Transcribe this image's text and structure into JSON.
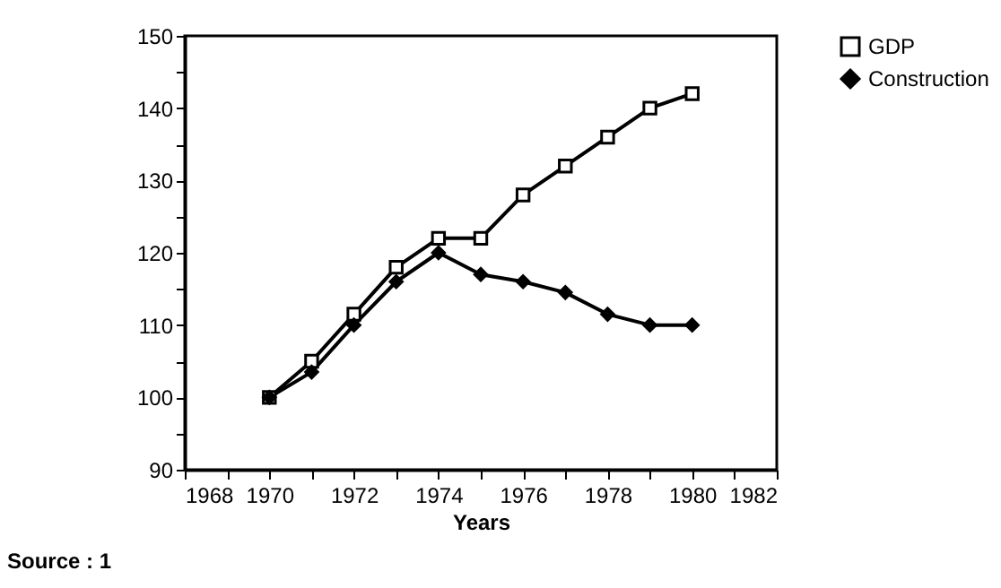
{
  "chart_data": {
    "type": "line",
    "xlabel": "Years",
    "x": [
      1970,
      1971,
      1972,
      1973,
      1974,
      1975,
      1976,
      1977,
      1978,
      1979,
      1980
    ],
    "series": [
      {
        "name": "GDP",
        "color": "#000000",
        "marker": "square",
        "values": [
          100,
          105,
          111.5,
          118,
          122,
          122,
          128,
          132,
          136,
          140,
          142
        ]
      },
      {
        "name": "Construction",
        "color": "#000000",
        "marker": "diamond",
        "values": [
          100,
          103.5,
          110,
          116,
          120,
          117,
          116,
          114.5,
          111.5,
          110,
          110
        ]
      }
    ],
    "xlim": [
      1968,
      1982
    ],
    "xticks": [
      1968,
      {
        "value": 1969,
        "label": null
      },
      1970,
      {
        "value": 1971,
        "label": null
      },
      1972,
      {
        "value": 1973,
        "label": null
      },
      1974,
      {
        "value": 1975,
        "label": null
      },
      1976,
      {
        "value": 1977,
        "label": null
      },
      1978,
      {
        "value": 1979,
        "label": null
      },
      1980,
      {
        "value": 1981,
        "label": null
      },
      1982
    ],
    "ylim": [
      90,
      150
    ],
    "yticks": [
      90,
      {
        "value": 95,
        "label": null
      },
      100,
      {
        "value": 105,
        "label": null
      },
      110,
      {
        "value": 115,
        "label": null
      },
      120,
      {
        "value": 125,
        "label": null
      },
      130,
      {
        "value": 135,
        "label": null
      },
      140,
      {
        "value": 145,
        "label": null
      },
      150
    ],
    "legend": "right",
    "grid": false,
    "line_style": "solid",
    "annotations": [
      "Source : 1"
    ]
  }
}
